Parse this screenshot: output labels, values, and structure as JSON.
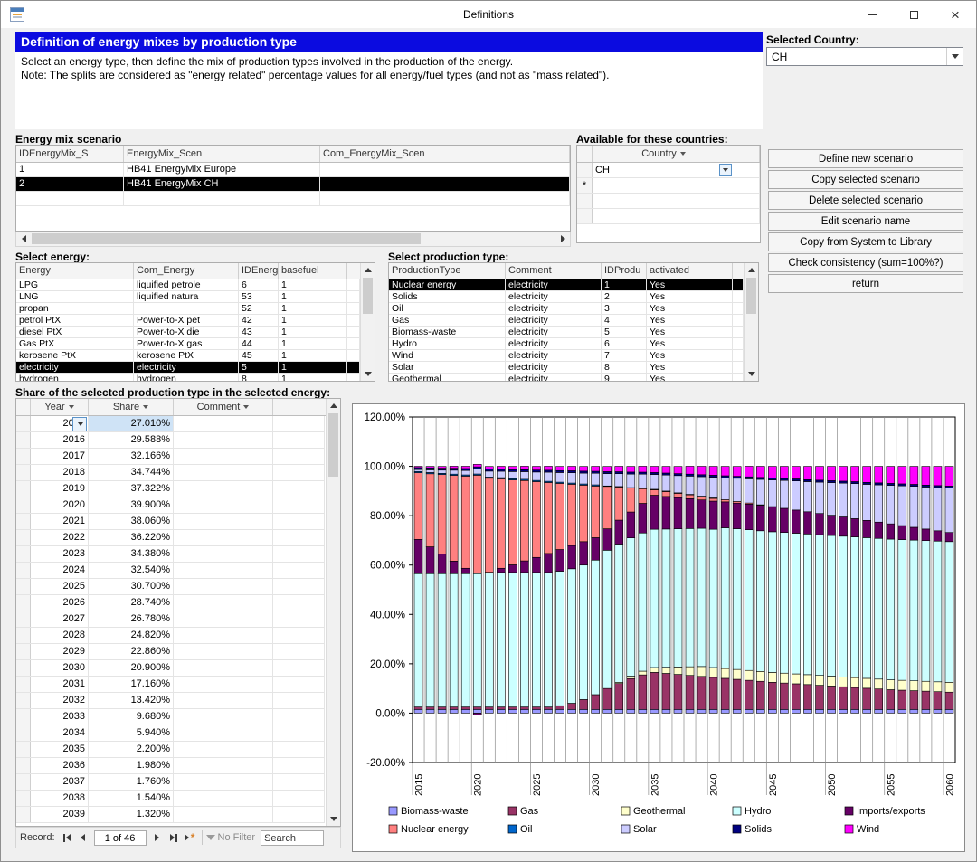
{
  "window": {
    "title": "Definitions"
  },
  "header": {
    "banner": "Definition of energy mixes by production type",
    "description_line1": "Select an energy type, then define the mix of production types involved in the production of the energy.",
    "description_line2": "Note: The splits are considered as \"energy related\" percentage values for all energy/fuel types (and not as \"mass related\")."
  },
  "selected_country": {
    "label": "Selected Country:",
    "value": "CH"
  },
  "scenario": {
    "label": "Energy mix scenario",
    "columns": [
      "IDEnergyMix_S",
      "EnergyMix_Scen",
      "Com_EnergyMix_Scen"
    ],
    "rows": [
      {
        "id": "1",
        "name": "HB41 EnergyMix Europe",
        "comment": ""
      },
      {
        "id": "2",
        "name": "HB41 EnergyMix CH",
        "comment": "",
        "selected": true
      }
    ]
  },
  "countries": {
    "label": "Available for these countries:",
    "column": "Country",
    "rows": [
      {
        "name": "CH"
      }
    ],
    "new_marker": "*"
  },
  "actions": {
    "define": "Define new scenario",
    "copy": "Copy selected scenario",
    "delete": "Delete selected scenario",
    "edit": "Edit scenario name",
    "copy_system": "Copy from System to Library",
    "check": "Check consistency (sum=100%?)",
    "return": "return"
  },
  "energy": {
    "label": "Select energy:",
    "columns": [
      "Energy",
      "Com_Energy",
      "IDEnergy",
      "basefuel"
    ],
    "rows": [
      {
        "energy": "LPG",
        "comment": "liquified petrole",
        "id": "6",
        "basefuel": "1"
      },
      {
        "energy": "LNG",
        "comment": "liquified natura",
        "id": "53",
        "basefuel": "1"
      },
      {
        "energy": "propan",
        "comment": "",
        "id": "52",
        "basefuel": "1"
      },
      {
        "energy": "petrol PtX",
        "comment": "Power-to-X pet",
        "id": "42",
        "basefuel": "1"
      },
      {
        "energy": "diesel PtX",
        "comment": "Power-to-X die",
        "id": "43",
        "basefuel": "1"
      },
      {
        "energy": "Gas PtX",
        "comment": "Power-to-X gas",
        "id": "44",
        "basefuel": "1"
      },
      {
        "energy": "kerosene PtX",
        "comment": "kerosene PtX",
        "id": "45",
        "basefuel": "1"
      },
      {
        "energy": "electricity",
        "comment": "electricity",
        "id": "5",
        "basefuel": "1",
        "selected": true
      },
      {
        "energy": "hydrogen",
        "comment": "hydrogen",
        "id": "8",
        "basefuel": "1"
      }
    ]
  },
  "production": {
    "label": "Select production type:",
    "columns": [
      "ProductionType",
      "Comment",
      "IDProdu",
      "activated"
    ],
    "rows": [
      {
        "type": "Nuclear energy",
        "comment": "electricity",
        "id": "1",
        "activated": "Yes",
        "selected": true
      },
      {
        "type": "Solids",
        "comment": "electricity",
        "id": "2",
        "activated": "Yes"
      },
      {
        "type": "Oil",
        "comment": "electricity",
        "id": "3",
        "activated": "Yes"
      },
      {
        "type": "Gas",
        "comment": "electricity",
        "id": "4",
        "activated": "Yes"
      },
      {
        "type": "Biomass-waste",
        "comment": "electricity",
        "id": "5",
        "activated": "Yes"
      },
      {
        "type": "Hydro",
        "comment": "electricity",
        "id": "6",
        "activated": "Yes"
      },
      {
        "type": "Wind",
        "comment": "electricity",
        "id": "7",
        "activated": "Yes"
      },
      {
        "type": "Solar",
        "comment": "electricity",
        "id": "8",
        "activated": "Yes"
      },
      {
        "type": "Geothermal",
        "comment": "electricity",
        "id": "9",
        "activated": "Yes"
      }
    ]
  },
  "share": {
    "label": "Share of the selected production type in the selected energy:",
    "columns": [
      "Year",
      "Share",
      "Comment"
    ],
    "rows": [
      {
        "year": "2015",
        "share": "27.010%",
        "comment": "",
        "active": true
      },
      {
        "year": "2016",
        "share": "29.588%",
        "comment": ""
      },
      {
        "year": "2017",
        "share": "32.166%",
        "comment": ""
      },
      {
        "year": "2018",
        "share": "34.744%",
        "comment": ""
      },
      {
        "year": "2019",
        "share": "37.322%",
        "comment": ""
      },
      {
        "year": "2020",
        "share": "39.900%",
        "comment": ""
      },
      {
        "year": "2021",
        "share": "38.060%",
        "comment": ""
      },
      {
        "year": "2022",
        "share": "36.220%",
        "comment": ""
      },
      {
        "year": "2023",
        "share": "34.380%",
        "comment": ""
      },
      {
        "year": "2024",
        "share": "32.540%",
        "comment": ""
      },
      {
        "year": "2025",
        "share": "30.700%",
        "comment": ""
      },
      {
        "year": "2026",
        "share": "28.740%",
        "comment": ""
      },
      {
        "year": "2027",
        "share": "26.780%",
        "comment": ""
      },
      {
        "year": "2028",
        "share": "24.820%",
        "comment": ""
      },
      {
        "year": "2029",
        "share": "22.860%",
        "comment": ""
      },
      {
        "year": "2030",
        "share": "20.900%",
        "comment": ""
      },
      {
        "year": "2031",
        "share": "17.160%",
        "comment": ""
      },
      {
        "year": "2032",
        "share": "13.420%",
        "comment": ""
      },
      {
        "year": "2033",
        "share": "9.680%",
        "comment": ""
      },
      {
        "year": "2034",
        "share": "5.940%",
        "comment": ""
      },
      {
        "year": "2035",
        "share": "2.200%",
        "comment": ""
      },
      {
        "year": "2036",
        "share": "1.980%",
        "comment": ""
      },
      {
        "year": "2037",
        "share": "1.760%",
        "comment": ""
      },
      {
        "year": "2038",
        "share": "1.540%",
        "comment": ""
      },
      {
        "year": "2039",
        "share": "1.320%",
        "comment": ""
      }
    ]
  },
  "record_nav": {
    "label": "Record:",
    "position": "1 of 46",
    "no_filter": "No Filter",
    "search": "Search"
  },
  "chart_data": {
    "type": "bar",
    "stacked": true,
    "title": "",
    "xlabel": "",
    "ylabel": "",
    "ylim": [
      -20,
      120
    ],
    "yticks": [
      -20,
      0,
      20,
      40,
      60,
      80,
      100,
      120
    ],
    "ytick_suffix": "%",
    "xticks": [
      2015,
      2020,
      2025,
      2030,
      2035,
      2040,
      2045,
      2050,
      2055,
      2060
    ],
    "legend_position": "bottom",
    "x": [
      2015,
      2016,
      2017,
      2018,
      2019,
      2020,
      2021,
      2022,
      2023,
      2024,
      2025,
      2026,
      2027,
      2028,
      2029,
      2030,
      2031,
      2032,
      2033,
      2034,
      2035,
      2036,
      2037,
      2038,
      2039,
      2040,
      2041,
      2042,
      2043,
      2044,
      2045,
      2046,
      2047,
      2048,
      2049,
      2050,
      2051,
      2052,
      2053,
      2054,
      2055,
      2056,
      2057,
      2058,
      2059,
      2060
    ],
    "series": [
      {
        "name": "Biomass-waste",
        "color": "#9999FF",
        "values": [
          1.5,
          1.5,
          1.5,
          1.5,
          1.5,
          1.5,
          1.5,
          1.5,
          1.5,
          1.5,
          1.5,
          1.5,
          1.5,
          1.5,
          1.5,
          1.5,
          1.5,
          1.5,
          1.5,
          1.5,
          1.5,
          1.5,
          1.5,
          1.5,
          1.5,
          1.5,
          1.5,
          1.5,
          1.5,
          1.5,
          1.5,
          1.5,
          1.5,
          1.5,
          1.5,
          1.5,
          1.5,
          1.5,
          1.5,
          1.5,
          1.5,
          1.5,
          1.5,
          1.5,
          1.5,
          1.5
        ]
      },
      {
        "name": "Gas",
        "color": "#993366",
        "values": [
          1,
          1,
          1,
          1,
          1,
          1,
          1,
          1,
          1,
          1,
          1,
          1,
          1.5,
          2.5,
          4,
          6,
          8.5,
          10.5,
          12.5,
          14,
          15,
          14.6,
          14.2,
          13.8,
          13.4,
          13,
          12.6,
          12.2,
          11.8,
          11.4,
          11,
          10.7,
          10.4,
          10.1,
          9.8,
          9.5,
          9.2,
          8.9,
          8.6,
          8.3,
          8,
          7.8,
          7.6,
          7.4,
          7.2,
          7
        ]
      },
      {
        "name": "Geothermal",
        "color": "#FFFFCC",
        "values": [
          0,
          0,
          0,
          0,
          0,
          0,
          0,
          0,
          0,
          0,
          0,
          0,
          0,
          0,
          0,
          0,
          0,
          0.5,
          1,
          1.5,
          2,
          2.5,
          3,
          3.5,
          4,
          4,
          4,
          4,
          4,
          4,
          4,
          4,
          4,
          4,
          4,
          4,
          4,
          4,
          4,
          4,
          4,
          4,
          4,
          4,
          4,
          4
        ]
      },
      {
        "name": "Hydro",
        "color": "#CCFFFF",
        "values": [
          54,
          54,
          54,
          54,
          54,
          54,
          54.5,
          54.5,
          54.5,
          54.5,
          54.5,
          54.5,
          54.5,
          54.5,
          54.5,
          54.5,
          56,
          56,
          56,
          56,
          56,
          56,
          56,
          56,
          56,
          56,
          57,
          57,
          57,
          57,
          57,
          57,
          57,
          57,
          57,
          57,
          57,
          57,
          57,
          57,
          57,
          57,
          57,
          57,
          57,
          57
        ]
      },
      {
        "name": "Imports/exports",
        "color": "#660066",
        "values": [
          13.9,
          10.9,
          8,
          5.1,
          2.2,
          -0.8,
          0.1,
          1.7,
          3.1,
          4.7,
          6.1,
          7.7,
          8.8,
          9.4,
          9.5,
          9.1,
          8.7,
          9.7,
          10.5,
          12,
          13.8,
          13.2,
          12.6,
          12.1,
          11.5,
          11.4,
          10.5,
          10.4,
          10.4,
          10.3,
          10.2,
          9.8,
          9.4,
          9,
          8.6,
          8.2,
          7.8,
          7.4,
          7,
          6.6,
          6.2,
          5.7,
          5.2,
          4.7,
          4.2,
          3.7
        ]
      },
      {
        "name": "Nuclear energy",
        "color": "#FF8080",
        "values": [
          27.01,
          29.588,
          32.166,
          34.744,
          37.322,
          39.9,
          38.06,
          36.22,
          34.38,
          32.54,
          30.7,
          28.74,
          26.78,
          24.82,
          22.86,
          20.9,
          17.16,
          13.42,
          9.68,
          5.94,
          2.2,
          1.98,
          1.76,
          1.54,
          1.32,
          1.1,
          0.88,
          0.66,
          0.44,
          0.22,
          0,
          0,
          0,
          0,
          0,
          0,
          0,
          0,
          0,
          0,
          0,
          0,
          0,
          0,
          0,
          0
        ]
      },
      {
        "name": "Oil",
        "color": "#0066CC",
        "values": [
          0.5,
          0.5,
          0.5,
          0.5,
          0.5,
          0.5,
          0.5,
          0.5,
          0.5,
          0.5,
          0.5,
          0.5,
          0.5,
          0.5,
          0.5,
          0.5,
          0.2,
          0.2,
          0.2,
          0.2,
          0.2,
          0.2,
          0.2,
          0.2,
          0.2,
          0.2,
          0,
          0,
          0,
          0,
          0,
          0,
          0,
          0,
          0,
          0,
          0,
          0,
          0,
          0,
          0,
          0,
          0,
          0,
          0,
          0
        ]
      },
      {
        "name": "Solar",
        "color": "#CCCCFF",
        "values": [
          0.8,
          1.1,
          1.3,
          1.6,
          1.8,
          2.1,
          2.4,
          2.6,
          2.9,
          3.1,
          3.4,
          3.7,
          3.9,
          4.2,
          4.4,
          4.7,
          5,
          5.2,
          5.5,
          5.7,
          6,
          6.5,
          7,
          7.4,
          7.9,
          8.4,
          8.9,
          9.4,
          9.8,
          10.3,
          10.8,
          11.3,
          11.8,
          12.2,
          12.7,
          13.2,
          13.7,
          14.2,
          14.6,
          15.1,
          15.6,
          16.1,
          16.6,
          17,
          17.5,
          18
        ]
      },
      {
        "name": "Solids",
        "color": "#000080",
        "values": [
          0.8,
          0.8,
          0.8,
          0.8,
          0.8,
          0.8,
          0.8,
          0.8,
          0.8,
          0.8,
          0.8,
          0.8,
          0.8,
          0.8,
          0.8,
          0.8,
          0.8,
          0.8,
          0.8,
          0.8,
          0.8,
          0.8,
          0.8,
          0.8,
          0.8,
          0.8,
          0.8,
          0.8,
          0.8,
          0.8,
          0.8,
          0.8,
          0.8,
          0.8,
          0.8,
          0.8,
          0.8,
          0.8,
          0.8,
          0.8,
          0.8,
          0.8,
          0.8,
          0.8,
          0.8,
          0.8
        ]
      },
      {
        "name": "Wind",
        "color": "#FF00FF",
        "values": [
          0.5,
          0.6,
          0.7,
          0.8,
          0.9,
          1,
          1.1,
          1.2,
          1.3,
          1.4,
          1.5,
          1.6,
          1.7,
          1.8,
          1.9,
          2,
          2.1,
          2.2,
          2.3,
          2.4,
          2.5,
          2.7,
          2.9,
          3.2,
          3.4,
          3.6,
          3.8,
          4,
          4.3,
          4.5,
          4.7,
          4.9,
          5.1,
          5.4,
          5.6,
          5.8,
          6,
          6.2,
          6.5,
          6.7,
          6.9,
          7.1,
          7.3,
          7.6,
          7.8,
          8
        ]
      }
    ]
  }
}
